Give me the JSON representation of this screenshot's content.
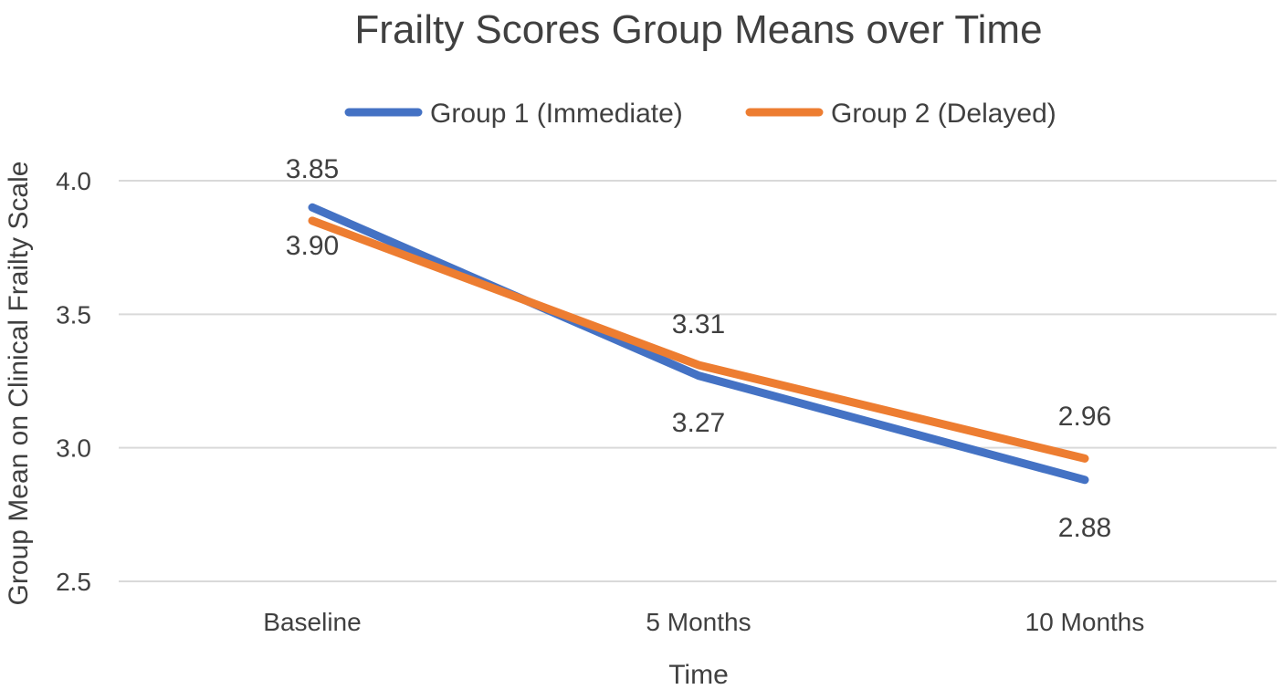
{
  "chart_data": {
    "type": "line",
    "title": "Frailty Scores Group Means over Time",
    "xlabel": "Time",
    "ylabel": "Group Mean on Clinical Frailty Scale",
    "categories": [
      "Baseline",
      "5 Months",
      "10 Months"
    ],
    "ylim": [
      2.5,
      4.0
    ],
    "yticks": [
      "2.5",
      "3.0",
      "3.5",
      "4.0"
    ],
    "grid": true,
    "legend_position": "top",
    "series": [
      {
        "name": "Group 1 (Immediate)",
        "values": [
          3.9,
          3.27,
          2.88
        ],
        "labels": [
          "3.90",
          "3.27",
          "2.88"
        ],
        "color": "#4472C4"
      },
      {
        "name": "Group 2 (Delayed)",
        "values": [
          3.85,
          3.31,
          2.96
        ],
        "labels": [
          "3.85",
          "3.31",
          "2.96"
        ],
        "color": "#ED7D31"
      }
    ]
  }
}
